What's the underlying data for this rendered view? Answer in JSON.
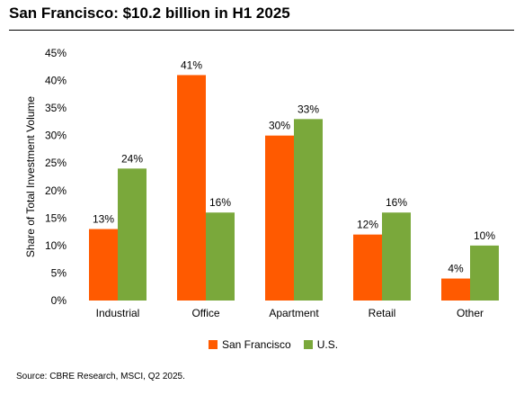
{
  "chart_data": {
    "type": "bar",
    "title": "San Francisco: $10.2 billion in H1 2025",
    "ylabel": "Share of Total Investment Volume",
    "xlabel": "",
    "categories": [
      "Industrial",
      "Office",
      "Apartment",
      "Retail",
      "Other"
    ],
    "series": [
      {
        "name": "San Francisco",
        "values": [
          13,
          41,
          30,
          12,
          4
        ],
        "color": "#ff5a00"
      },
      {
        "name": "U.S.",
        "values": [
          24,
          16,
          33,
          16,
          10
        ],
        "color": "#7aa83b"
      }
    ],
    "ylim": [
      0,
      45
    ],
    "yticks": [
      0,
      5,
      10,
      15,
      20,
      25,
      30,
      35,
      40,
      45
    ],
    "value_suffix": "%",
    "grid": false,
    "legend_position": "bottom"
  },
  "source": "Source: CBRE Research, MSCI, Q2 2025."
}
